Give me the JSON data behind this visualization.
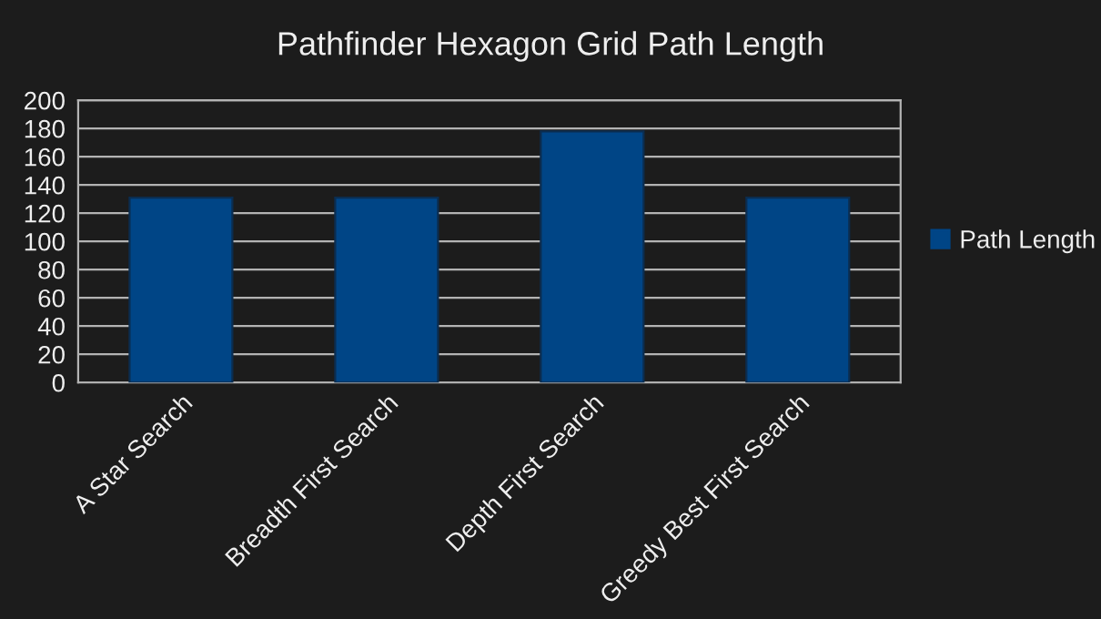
{
  "chart_data": {
    "type": "bar",
    "title": "Pathfinder Hexagon Grid Path Length",
    "categories": [
      "A Star Search",
      "Breadth First Search",
      "Depth First Search",
      "Greedy Best First Search"
    ],
    "series": [
      {
        "name": "Path Length",
        "color": "#004586",
        "values": [
          131,
          131,
          178,
          131
        ]
      }
    ],
    "ylim": [
      0,
      200
    ],
    "yticks": [
      0,
      20,
      40,
      60,
      80,
      100,
      120,
      140,
      160,
      180,
      200
    ],
    "grid": "y",
    "legend": "right"
  }
}
